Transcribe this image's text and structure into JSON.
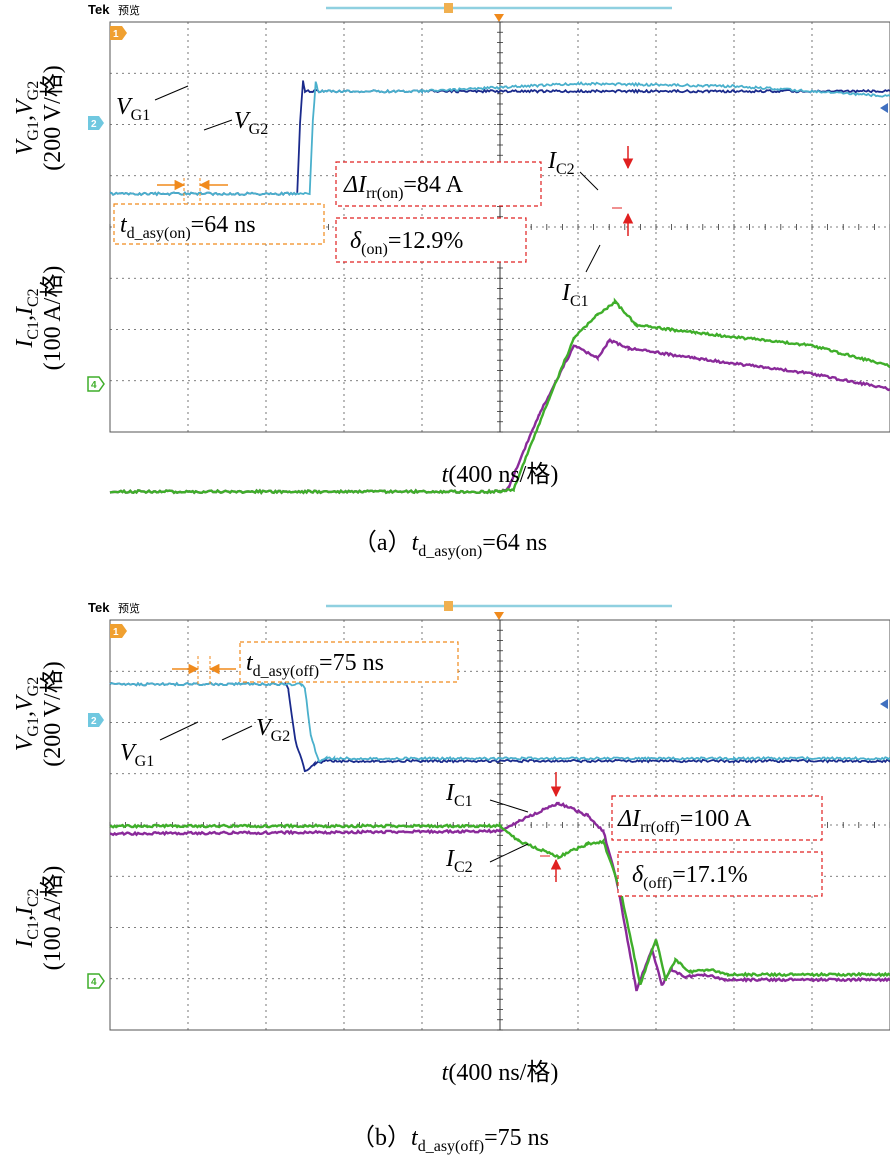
{
  "colors": {
    "vg1": "#1a2a8c",
    "vg2": "#4ab0cc",
    "ic1": "#8a2a9a",
    "ic2": "#3fae2a",
    "grid": "#555555",
    "annot_orange": "#f08a1c",
    "annot_red": "#e02020"
  },
  "scope": {
    "brand": "Tek",
    "status": "预览",
    "ch_markers": [
      "1",
      "2",
      "4"
    ]
  },
  "chart_data": [
    {
      "type": "line",
      "panel": "a",
      "caption_prefix": "（a）",
      "caption_t": "t",
      "caption_sub": "d_asy(on)",
      "caption_value": "=64 ns",
      "xlabel_t": "t",
      "xlabel_rest": "(400 ns/格)",
      "x_divisions": 10,
      "y_divisions": 8,
      "grid": true,
      "ylabel_top": {
        "line1_a": "V",
        "line1_s1": "G1",
        "line1_b": ",V",
        "line1_s2": "G2",
        "line2": "(200 V/格)"
      },
      "ylabel_bottom": {
        "line1_a": "I",
        "line1_s1": "C1",
        "line1_b": ",I",
        "line1_s2": "C2",
        "line2": "(100 A/格)"
      },
      "series": [
        {
          "name": "VG1",
          "label_main": "V",
          "label_sub": "G1",
          "units": "V",
          "x_ns": [
            0,
            960,
            975,
            990,
            1000,
            1600,
            2400,
            3200,
            4000
          ],
          "y": [
            -1.4,
            -1.4,
            0.0,
            0.8,
            0.6,
            0.6,
            0.6,
            0.6,
            0.6
          ]
        },
        {
          "name": "VG2",
          "label_main": "V",
          "label_sub": "G2",
          "units": "V",
          "x_ns": [
            0,
            1024,
            1040,
            1055,
            1065,
            1600,
            2400,
            3200,
            4000
          ],
          "y": [
            -1.4,
            -1.4,
            0.0,
            0.8,
            0.6,
            0.6,
            0.75,
            0.7,
            0.5
          ]
        },
        {
          "name": "IC1",
          "label_main": "I",
          "label_sub": "C1",
          "units": "A",
          "x_ns": [
            0,
            2000,
            2040,
            2200,
            2380,
            2500,
            2560,
            2660,
            3000,
            3600,
            4000
          ],
          "y": [
            -2.1,
            -2.1,
            -2.05,
            -0.6,
            0.75,
            0.5,
            0.85,
            0.7,
            0.5,
            0.2,
            -0.1
          ]
        },
        {
          "name": "IC2",
          "label_main": "I",
          "label_sub": "C2",
          "units": "A",
          "x_ns": [
            0,
            2000,
            2070,
            2250,
            2380,
            2500,
            2590,
            2700,
            3000,
            3600,
            4000
          ],
          "y": [
            -2.1,
            -2.1,
            -2.05,
            -0.3,
            0.9,
            1.35,
            1.6,
            1.15,
            1.0,
            0.75,
            0.35
          ]
        }
      ],
      "annotations": {
        "delay": {
          "t": "t",
          "sub": "d_asy(on)",
          "value": "=64 ns"
        },
        "delta": {
          "sym": "ΔI",
          "sub": "rr(on)",
          "value": "=84 A"
        },
        "ratio": {
          "sym": "δ",
          "sub": "(on)",
          "value": "=12.9%"
        }
      }
    },
    {
      "type": "line",
      "panel": "b",
      "caption_prefix": "（b）",
      "caption_t": "t",
      "caption_sub": "d_asy(off)",
      "caption_value": "=75 ns",
      "xlabel_t": "t",
      "xlabel_rest": "(400 ns/格)",
      "x_divisions": 10,
      "y_divisions": 8,
      "grid": true,
      "ylabel_top": {
        "line1_a": "V",
        "line1_s1": "G1",
        "line1_b": ",V",
        "line1_s2": "G2",
        "line2": "(200 V/格)"
      },
      "ylabel_bottom": {
        "line1_a": "I",
        "line1_s1": "C1",
        "line1_b": ",I",
        "line1_s2": "C2",
        "line2": "(100 A/格)"
      },
      "series": [
        {
          "name": "VG1",
          "label_main": "V",
          "label_sub": "G1",
          "units": "V",
          "x_ns": [
            0,
            900,
            915,
            950,
            1000,
            1050,
            1100,
            1600,
            2400,
            3200,
            4000
          ],
          "y": [
            0.7,
            0.7,
            0.6,
            -0.4,
            -1.0,
            -0.85,
            -0.8,
            -0.8,
            -0.8,
            -0.8,
            -0.8
          ]
        },
        {
          "name": "VG2",
          "label_main": "V",
          "label_sub": "G2",
          "units": "V",
          "x_ns": [
            0,
            980,
            1000,
            1030,
            1070,
            1110,
            1150,
            1600,
            2400,
            3200,
            4000
          ],
          "y": [
            0.7,
            0.7,
            0.6,
            -0.3,
            -0.8,
            -0.75,
            -0.75,
            -0.75,
            -0.75,
            -0.75,
            -0.75
          ]
        },
        {
          "name": "IC1",
          "label_main": "I",
          "label_sub": "C1",
          "units": "A",
          "x_ns": [
            0,
            2000,
            2100,
            2300,
            2450,
            2530,
            2600,
            2700,
            2780,
            2830,
            2880,
            2950,
            3050,
            3150,
            4000
          ],
          "y": [
            -0.15,
            -0.1,
            0.1,
            0.45,
            0.2,
            -0.1,
            -1.1,
            -3.2,
            -2.4,
            -3.1,
            -2.8,
            -2.95,
            -2.9,
            -3.0,
            -3.0
          ]
        },
        {
          "name": "IC2",
          "label_main": "I",
          "label_sub": "C2",
          "units": "A",
          "x_ns": [
            0,
            2000,
            2100,
            2300,
            2450,
            2530,
            2620,
            2720,
            2800,
            2850,
            2900,
            2970,
            3070,
            3170,
            4000
          ],
          "y": [
            0.0,
            0.0,
            -0.3,
            -0.6,
            -0.35,
            -0.3,
            -1.3,
            -3.1,
            -2.2,
            -3.0,
            -2.6,
            -2.85,
            -2.8,
            -2.9,
            -2.9
          ]
        }
      ],
      "annotations": {
        "delay": {
          "t": "t",
          "sub": "d_asy(off)",
          "value": "=75 ns"
        },
        "delta": {
          "sym": "ΔI",
          "sub": "rr(off)",
          "value": "=100 A"
        },
        "ratio": {
          "sym": "δ",
          "sub": "(off)",
          "value": "=17.1%"
        }
      }
    }
  ]
}
